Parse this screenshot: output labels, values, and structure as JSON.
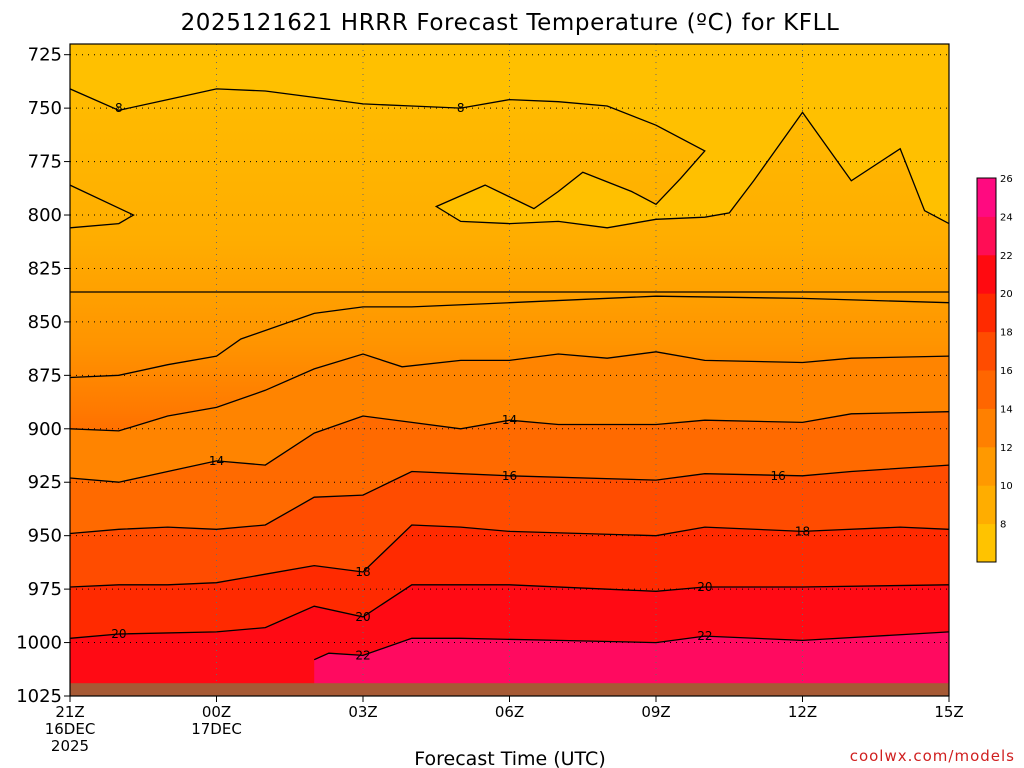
{
  "chart_data": {
    "type": "contour",
    "title": "2025121621 HRRR Forecast Temperature (ºC) for KFLL",
    "xlabel": "Forecast Time (UTC)",
    "ylabel": "",
    "credit": "coolwx.com/models",
    "y_axis": {
      "reversed": true,
      "range": [
        1025,
        720
      ],
      "ticks": [
        725,
        750,
        775,
        800,
        825,
        850,
        875,
        900,
        925,
        950,
        975,
        1000,
        1025
      ]
    },
    "x_axis": {
      "range": [
        0,
        18
      ],
      "ticks": [
        {
          "hour": 0,
          "lines": [
            "21Z",
            "16DEC",
            "2025"
          ]
        },
        {
          "hour": 3,
          "lines": [
            "00Z",
            "17DEC"
          ]
        },
        {
          "hour": 6,
          "lines": [
            "03Z"
          ]
        },
        {
          "hour": 9,
          "lines": [
            "06Z"
          ]
        },
        {
          "hour": 12,
          "lines": [
            "09Z"
          ]
        },
        {
          "hour": 15,
          "lines": [
            "12Z"
          ]
        },
        {
          "hour": 18,
          "lines": [
            "15Z"
          ]
        }
      ]
    },
    "ground_level_hpa": 1019,
    "colorbar": {
      "levels": [
        6,
        8,
        10,
        12,
        14,
        16,
        18,
        20,
        22,
        24,
        26
      ],
      "labels": [
        8,
        10,
        12,
        14,
        16,
        18,
        20,
        22,
        24,
        26
      ],
      "colors": [
        "#ffc300",
        "#ffad00",
        "#ff9900",
        "#ff8000",
        "#ff6600",
        "#ff4c00",
        "#ff2a00",
        "#ff0a10",
        "#ff0d55",
        "#ff0a80"
      ]
    },
    "contours": [
      {
        "level": 8,
        "label": "8",
        "label_at": [
          [
            1,
            750
          ],
          [
            8,
            750
          ]
        ],
        "points": [
          [
            0,
            741
          ],
          [
            1,
            751
          ],
          [
            2,
            746
          ],
          [
            3,
            741
          ],
          [
            4,
            742
          ],
          [
            5,
            745
          ],
          [
            6,
            748
          ],
          [
            7,
            749
          ],
          [
            8,
            750
          ],
          [
            9,
            746
          ],
          [
            10,
            747
          ],
          [
            11,
            749
          ],
          [
            12,
            758
          ],
          [
            13,
            770
          ],
          [
            12.5,
            783
          ],
          [
            12,
            795
          ],
          [
            11.5,
            789
          ],
          [
            10.5,
            780
          ],
          [
            10,
            789
          ],
          [
            9.5,
            797
          ],
          [
            8.5,
            786
          ],
          [
            7.5,
            796
          ],
          [
            8,
            803
          ],
          [
            9,
            804
          ],
          [
            10,
            803
          ],
          [
            11,
            806
          ],
          [
            12,
            802
          ],
          [
            13,
            801
          ],
          [
            13.5,
            799
          ],
          [
            14,
            784
          ],
          [
            15,
            752
          ],
          [
            16,
            784
          ],
          [
            17,
            769
          ],
          [
            17.5,
            798
          ],
          [
            18,
            804
          ]
        ]
      },
      {
        "level": 10,
        "label": "",
        "points": [
          [
            0,
            786
          ],
          [
            1.3,
            800
          ],
          [
            1,
            804
          ],
          [
            0,
            806
          ]
        ]
      },
      {
        "level": 10,
        "label": "",
        "points": [
          [
            0,
            836
          ],
          [
            18,
            836
          ]
        ]
      },
      {
        "level": 10,
        "label": "",
        "points": [
          [
            0,
            876
          ],
          [
            1,
            875
          ],
          [
            2,
            870
          ],
          [
            3,
            866
          ],
          [
            3.5,
            858
          ],
          [
            5,
            846
          ],
          [
            6,
            843
          ],
          [
            7,
            843
          ],
          [
            9,
            841
          ],
          [
            12,
            838
          ],
          [
            15,
            839
          ],
          [
            18,
            841
          ]
        ]
      },
      {
        "level": 12,
        "label": "",
        "points": [
          [
            0,
            900
          ],
          [
            1,
            901
          ],
          [
            2,
            894
          ],
          [
            3,
            890
          ],
          [
            4,
            882
          ],
          [
            5,
            872
          ],
          [
            6,
            865
          ],
          [
            6.8,
            871
          ],
          [
            8,
            868
          ],
          [
            9,
            868
          ],
          [
            10,
            865
          ],
          [
            11,
            867
          ],
          [
            12,
            864
          ],
          [
            13,
            868
          ],
          [
            15,
            869
          ],
          [
            16,
            867
          ],
          [
            18,
            866
          ]
        ]
      },
      {
        "level": 14,
        "label": "14",
        "label_at": [
          [
            3,
            915
          ],
          [
            9,
            896
          ]
        ],
        "points": [
          [
            0,
            923
          ],
          [
            1,
            925
          ],
          [
            2,
            920
          ],
          [
            3,
            915
          ],
          [
            4,
            917
          ],
          [
            5,
            902
          ],
          [
            6,
            894
          ],
          [
            7,
            897
          ],
          [
            8,
            900
          ],
          [
            9,
            896
          ],
          [
            10,
            898
          ],
          [
            12,
            898
          ],
          [
            13,
            896
          ],
          [
            15,
            897
          ],
          [
            16,
            893
          ],
          [
            18,
            892
          ]
        ]
      },
      {
        "level": 16,
        "label": "16",
        "label_at": [
          [
            9,
            922
          ],
          [
            14.5,
            922
          ]
        ],
        "points": [
          [
            0,
            949
          ],
          [
            1,
            947
          ],
          [
            2,
            946
          ],
          [
            3,
            947
          ],
          [
            4,
            945
          ],
          [
            5,
            932
          ],
          [
            6,
            931
          ],
          [
            7,
            920
          ],
          [
            8,
            921
          ],
          [
            9,
            922
          ],
          [
            12,
            924
          ],
          [
            13,
            921
          ],
          [
            15,
            922
          ],
          [
            16,
            920
          ],
          [
            18,
            917
          ]
        ]
      },
      {
        "level": 18,
        "label": "18",
        "label_at": [
          [
            6,
            967
          ],
          [
            15,
            948
          ]
        ],
        "points": [
          [
            0,
            974
          ],
          [
            1,
            973
          ],
          [
            2,
            973
          ],
          [
            3,
            972
          ],
          [
            4,
            968
          ],
          [
            5,
            964
          ],
          [
            6,
            967
          ],
          [
            7,
            945
          ],
          [
            8,
            946
          ],
          [
            9,
            948
          ],
          [
            12,
            950
          ],
          [
            13,
            946
          ],
          [
            15,
            948
          ],
          [
            17,
            946
          ],
          [
            18,
            947
          ]
        ]
      },
      {
        "level": 20,
        "label": "20",
        "label_at": [
          [
            1,
            996
          ],
          [
            6,
            988
          ],
          [
            13,
            974
          ]
        ],
        "points": [
          [
            0,
            998
          ],
          [
            1,
            996
          ],
          [
            3,
            995
          ],
          [
            4,
            993
          ],
          [
            5,
            983
          ],
          [
            6,
            988
          ],
          [
            7,
            973
          ],
          [
            9,
            973
          ],
          [
            12,
            976
          ],
          [
            13,
            974
          ],
          [
            15,
            974
          ],
          [
            18,
            973
          ]
        ]
      },
      {
        "level": 22,
        "label": "22",
        "label_at": [
          [
            6,
            1006
          ],
          [
            13,
            997
          ]
        ],
        "points": [
          [
            5,
            1008
          ],
          [
            5.3,
            1005
          ],
          [
            6,
            1006
          ],
          [
            7,
            998
          ],
          [
            8,
            998
          ],
          [
            10,
            999
          ],
          [
            12,
            1000
          ],
          [
            13,
            997
          ],
          [
            15,
            999
          ],
          [
            18,
            995
          ]
        ]
      }
    ]
  }
}
